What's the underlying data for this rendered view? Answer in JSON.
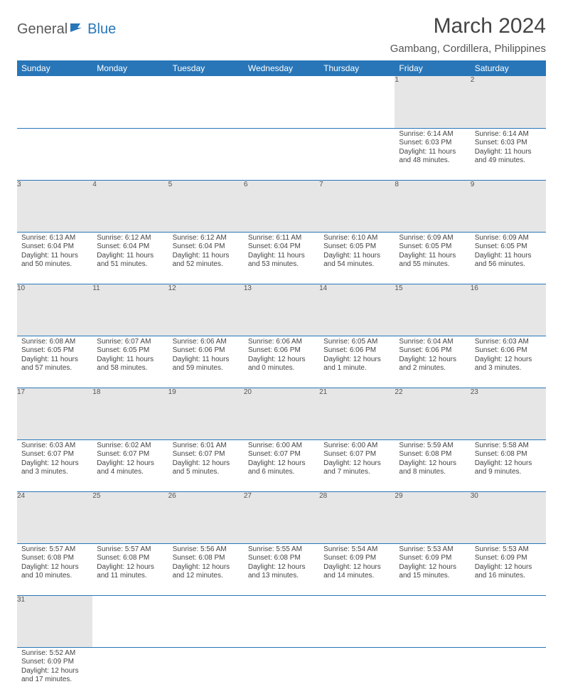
{
  "brand": {
    "part1": "General",
    "part2": "Blue"
  },
  "title": "March 2024",
  "location": "Gambang, Cordillera, Philippines",
  "colors": {
    "headerBg": "#2876b8",
    "headerText": "#ffffff",
    "dayBg": "#e6e6e6",
    "rule": "#2876b8"
  },
  "dayHeaders": [
    "Sunday",
    "Monday",
    "Tuesday",
    "Wednesday",
    "Thursday",
    "Friday",
    "Saturday"
  ],
  "weeks": [
    [
      null,
      null,
      null,
      null,
      null,
      {
        "n": "1",
        "sr": "Sunrise: 6:14 AM",
        "ss": "Sunset: 6:03 PM",
        "dl1": "Daylight: 11 hours",
        "dl2": "and 48 minutes."
      },
      {
        "n": "2",
        "sr": "Sunrise: 6:14 AM",
        "ss": "Sunset: 6:03 PM",
        "dl1": "Daylight: 11 hours",
        "dl2": "and 49 minutes."
      }
    ],
    [
      {
        "n": "3",
        "sr": "Sunrise: 6:13 AM",
        "ss": "Sunset: 6:04 PM",
        "dl1": "Daylight: 11 hours",
        "dl2": "and 50 minutes."
      },
      {
        "n": "4",
        "sr": "Sunrise: 6:12 AM",
        "ss": "Sunset: 6:04 PM",
        "dl1": "Daylight: 11 hours",
        "dl2": "and 51 minutes."
      },
      {
        "n": "5",
        "sr": "Sunrise: 6:12 AM",
        "ss": "Sunset: 6:04 PM",
        "dl1": "Daylight: 11 hours",
        "dl2": "and 52 minutes."
      },
      {
        "n": "6",
        "sr": "Sunrise: 6:11 AM",
        "ss": "Sunset: 6:04 PM",
        "dl1": "Daylight: 11 hours",
        "dl2": "and 53 minutes."
      },
      {
        "n": "7",
        "sr": "Sunrise: 6:10 AM",
        "ss": "Sunset: 6:05 PM",
        "dl1": "Daylight: 11 hours",
        "dl2": "and 54 minutes."
      },
      {
        "n": "8",
        "sr": "Sunrise: 6:09 AM",
        "ss": "Sunset: 6:05 PM",
        "dl1": "Daylight: 11 hours",
        "dl2": "and 55 minutes."
      },
      {
        "n": "9",
        "sr": "Sunrise: 6:09 AM",
        "ss": "Sunset: 6:05 PM",
        "dl1": "Daylight: 11 hours",
        "dl2": "and 56 minutes."
      }
    ],
    [
      {
        "n": "10",
        "sr": "Sunrise: 6:08 AM",
        "ss": "Sunset: 6:05 PM",
        "dl1": "Daylight: 11 hours",
        "dl2": "and 57 minutes."
      },
      {
        "n": "11",
        "sr": "Sunrise: 6:07 AM",
        "ss": "Sunset: 6:05 PM",
        "dl1": "Daylight: 11 hours",
        "dl2": "and 58 minutes."
      },
      {
        "n": "12",
        "sr": "Sunrise: 6:06 AM",
        "ss": "Sunset: 6:06 PM",
        "dl1": "Daylight: 11 hours",
        "dl2": "and 59 minutes."
      },
      {
        "n": "13",
        "sr": "Sunrise: 6:06 AM",
        "ss": "Sunset: 6:06 PM",
        "dl1": "Daylight: 12 hours",
        "dl2": "and 0 minutes."
      },
      {
        "n": "14",
        "sr": "Sunrise: 6:05 AM",
        "ss": "Sunset: 6:06 PM",
        "dl1": "Daylight: 12 hours",
        "dl2": "and 1 minute."
      },
      {
        "n": "15",
        "sr": "Sunrise: 6:04 AM",
        "ss": "Sunset: 6:06 PM",
        "dl1": "Daylight: 12 hours",
        "dl2": "and 2 minutes."
      },
      {
        "n": "16",
        "sr": "Sunrise: 6:03 AM",
        "ss": "Sunset: 6:06 PM",
        "dl1": "Daylight: 12 hours",
        "dl2": "and 3 minutes."
      }
    ],
    [
      {
        "n": "17",
        "sr": "Sunrise: 6:03 AM",
        "ss": "Sunset: 6:07 PM",
        "dl1": "Daylight: 12 hours",
        "dl2": "and 3 minutes."
      },
      {
        "n": "18",
        "sr": "Sunrise: 6:02 AM",
        "ss": "Sunset: 6:07 PM",
        "dl1": "Daylight: 12 hours",
        "dl2": "and 4 minutes."
      },
      {
        "n": "19",
        "sr": "Sunrise: 6:01 AM",
        "ss": "Sunset: 6:07 PM",
        "dl1": "Daylight: 12 hours",
        "dl2": "and 5 minutes."
      },
      {
        "n": "20",
        "sr": "Sunrise: 6:00 AM",
        "ss": "Sunset: 6:07 PM",
        "dl1": "Daylight: 12 hours",
        "dl2": "and 6 minutes."
      },
      {
        "n": "21",
        "sr": "Sunrise: 6:00 AM",
        "ss": "Sunset: 6:07 PM",
        "dl1": "Daylight: 12 hours",
        "dl2": "and 7 minutes."
      },
      {
        "n": "22",
        "sr": "Sunrise: 5:59 AM",
        "ss": "Sunset: 6:08 PM",
        "dl1": "Daylight: 12 hours",
        "dl2": "and 8 minutes."
      },
      {
        "n": "23",
        "sr": "Sunrise: 5:58 AM",
        "ss": "Sunset: 6:08 PM",
        "dl1": "Daylight: 12 hours",
        "dl2": "and 9 minutes."
      }
    ],
    [
      {
        "n": "24",
        "sr": "Sunrise: 5:57 AM",
        "ss": "Sunset: 6:08 PM",
        "dl1": "Daylight: 12 hours",
        "dl2": "and 10 minutes."
      },
      {
        "n": "25",
        "sr": "Sunrise: 5:57 AM",
        "ss": "Sunset: 6:08 PM",
        "dl1": "Daylight: 12 hours",
        "dl2": "and 11 minutes."
      },
      {
        "n": "26",
        "sr": "Sunrise: 5:56 AM",
        "ss": "Sunset: 6:08 PM",
        "dl1": "Daylight: 12 hours",
        "dl2": "and 12 minutes."
      },
      {
        "n": "27",
        "sr": "Sunrise: 5:55 AM",
        "ss": "Sunset: 6:08 PM",
        "dl1": "Daylight: 12 hours",
        "dl2": "and 13 minutes."
      },
      {
        "n": "28",
        "sr": "Sunrise: 5:54 AM",
        "ss": "Sunset: 6:09 PM",
        "dl1": "Daylight: 12 hours",
        "dl2": "and 14 minutes."
      },
      {
        "n": "29",
        "sr": "Sunrise: 5:53 AM",
        "ss": "Sunset: 6:09 PM",
        "dl1": "Daylight: 12 hours",
        "dl2": "and 15 minutes."
      },
      {
        "n": "30",
        "sr": "Sunrise: 5:53 AM",
        "ss": "Sunset: 6:09 PM",
        "dl1": "Daylight: 12 hours",
        "dl2": "and 16 minutes."
      }
    ],
    [
      {
        "n": "31",
        "sr": "Sunrise: 5:52 AM",
        "ss": "Sunset: 6:09 PM",
        "dl1": "Daylight: 12 hours",
        "dl2": "and 17 minutes."
      },
      null,
      null,
      null,
      null,
      null,
      null
    ]
  ]
}
